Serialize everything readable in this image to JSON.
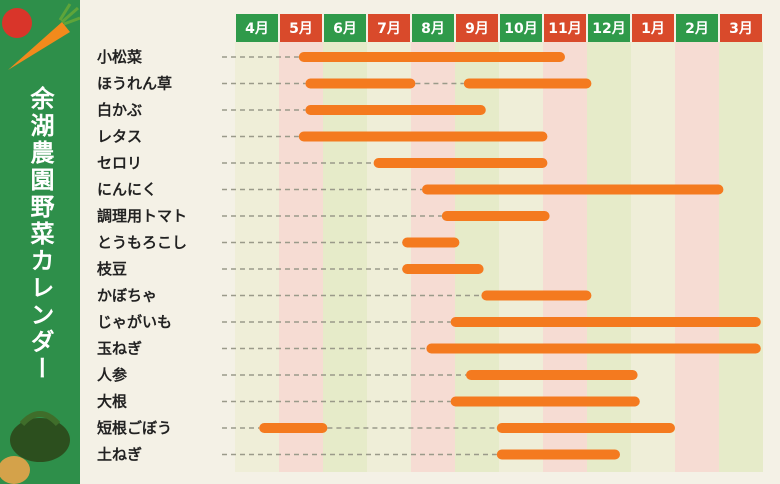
{
  "title": "余湖農園野菜カレンダー",
  "colors": {
    "sidebar": "#2e8f4a",
    "bar": "#f47a1f",
    "month_green": "#2f9a4a",
    "month_red": "#d94a2b",
    "col_light": "#efeed8",
    "col_pink": "#f6dcd3",
    "col_green": "#e6ebc9"
  },
  "chart_data": {
    "type": "bar",
    "orientation": "horizontal-range",
    "x_unit": "月",
    "months": [
      "4月",
      "5月",
      "6月",
      "7月",
      "8月",
      "9月",
      "10月",
      "11月",
      "12月",
      "1月",
      "2月",
      "3月"
    ],
    "month_colors": [
      "green",
      "red",
      "green",
      "red",
      "green",
      "red",
      "green",
      "red",
      "green",
      "red",
      "green",
      "red"
    ],
    "categories": [
      "小松菜",
      "ほうれん草",
      "白かぶ",
      "レタス",
      "セロリ",
      "にんにく",
      "調理用トマト",
      "とうもろこし",
      "枝豆",
      "かぼちゃ",
      "じゃがいも",
      "玉ねぎ",
      "人参",
      "大根",
      "短根ごぼう",
      "土ねぎ"
    ],
    "series": [
      {
        "category": "小松菜",
        "ranges": [
          [
            1.45,
            7.5
          ]
        ]
      },
      {
        "category": "ほうれん草",
        "ranges": [
          [
            1.6,
            4.1
          ],
          [
            5.2,
            8.1
          ]
        ]
      },
      {
        "category": "白かぶ",
        "ranges": [
          [
            1.6,
            5.7
          ]
        ]
      },
      {
        "category": "レタス",
        "ranges": [
          [
            1.45,
            7.1
          ]
        ]
      },
      {
        "category": "セロリ",
        "ranges": [
          [
            3.15,
            7.1
          ]
        ]
      },
      {
        "category": "にんにく",
        "ranges": [
          [
            4.25,
            11.1
          ]
        ]
      },
      {
        "category": "調理用トマト",
        "ranges": [
          [
            4.7,
            7.15
          ]
        ]
      },
      {
        "category": "とうもろこし",
        "ranges": [
          [
            3.8,
            5.1
          ]
        ]
      },
      {
        "category": "枝豆",
        "ranges": [
          [
            3.8,
            5.65
          ]
        ]
      },
      {
        "category": "かぼちゃ",
        "ranges": [
          [
            5.6,
            8.1
          ]
        ]
      },
      {
        "category": "じゃがいも",
        "ranges": [
          [
            4.9,
            11.95
          ]
        ]
      },
      {
        "category": "玉ねぎ",
        "ranges": [
          [
            4.35,
            11.95
          ]
        ]
      },
      {
        "category": "人参",
        "ranges": [
          [
            5.25,
            9.15
          ]
        ]
      },
      {
        "category": "大根",
        "ranges": [
          [
            4.9,
            9.2
          ]
        ]
      },
      {
        "category": "短根ごぼう",
        "ranges": [
          [
            0.55,
            2.1
          ],
          [
            5.95,
            10.0
          ]
        ]
      },
      {
        "category": "土ねぎ",
        "ranges": [
          [
            5.95,
            8.75
          ]
        ]
      }
    ]
  }
}
